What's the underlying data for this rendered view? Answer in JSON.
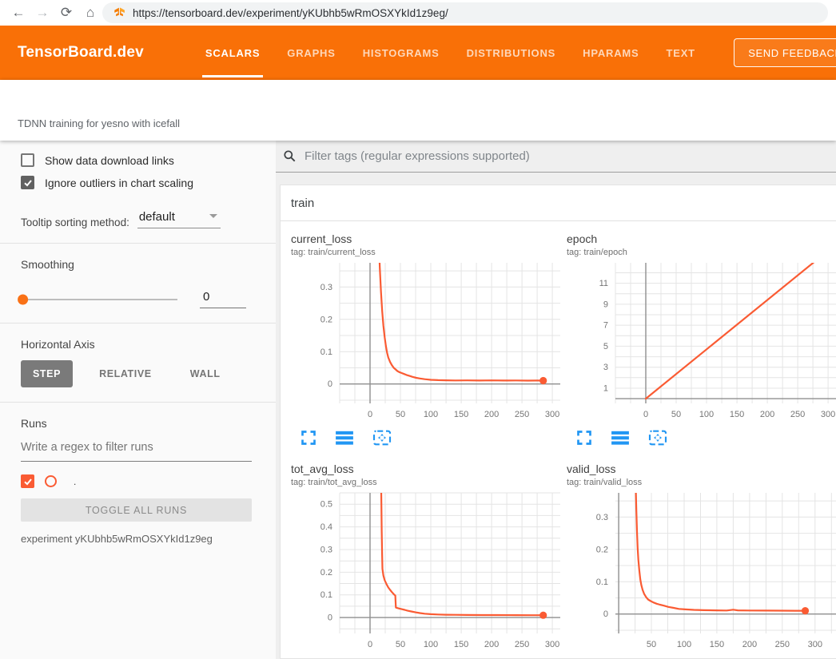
{
  "browser": {
    "url": "https://tensorboard.dev/experiment/yKUbhb5wRmOSXYkId1z9eg/",
    "icons": {
      "back": "←",
      "forward": "→",
      "reload": "⟳",
      "home": "⌂"
    }
  },
  "header": {
    "logo": "TensorBoard.dev",
    "tabs": [
      {
        "label": "SCALARS",
        "active": true
      },
      {
        "label": "GRAPHS",
        "active": false
      },
      {
        "label": "HISTOGRAMS",
        "active": false
      },
      {
        "label": "DISTRIBUTIONS",
        "active": false
      },
      {
        "label": "HPARAMS",
        "active": false
      },
      {
        "label": "TEXT",
        "active": false
      }
    ],
    "feedback_button": "SEND FEEDBACK"
  },
  "experiment_bar": {
    "title": "TDNN training for yesno with icefall"
  },
  "sidebar": {
    "show_download_label": "Show data download links",
    "show_download_checked": false,
    "ignore_outliers_label": "Ignore outliers in chart scaling",
    "ignore_outliers_checked": true,
    "tooltip_sorting_label": "Tooltip sorting method:",
    "tooltip_sorting_value": "default",
    "smoothing_label": "Smoothing",
    "smoothing_value": "0",
    "horizontal_axis_label": "Horizontal Axis",
    "axis_options": [
      {
        "label": "STEP",
        "selected": true
      },
      {
        "label": "RELATIVE",
        "selected": false
      },
      {
        "label": "WALL",
        "selected": false
      }
    ],
    "runs_label": "Runs",
    "runs_filter_placeholder": "Write a regex to filter runs",
    "run_item": {
      "name": ".",
      "checked": true
    },
    "toggle_all_label": "TOGGLE ALL RUNS",
    "experiment_note": "experiment yKUbhb5wRmOSXYkId1z9eg"
  },
  "main": {
    "filter_placeholder": "Filter tags (regular expressions supported)",
    "section_title": "train"
  },
  "colors": {
    "header_orange": "#f97007",
    "run_orange": "#fa5b33",
    "action_icon_blue": "#2196f3",
    "grid_gray": "#e4e4e4",
    "axis_gray": "#8f8f8f"
  },
  "chart_data": [
    {
      "type": "line",
      "title": "current_loss",
      "tag": "tag: train/current_loss",
      "xlim": [
        -50,
        313
      ],
      "ylim": [
        -0.06,
        0.375
      ],
      "x_minor": 25,
      "y_minor": 0.05,
      "x_ticks": [
        0,
        50,
        100,
        150,
        200,
        250,
        300
      ],
      "y_ticks": [
        0,
        0.1,
        0.2,
        0.3
      ],
      "end_marker": true,
      "series": [
        {
          "name": ".",
          "color": "#fa5b33",
          "points": [
            [
              12,
              0.62
            ],
            [
              14,
              0.46
            ],
            [
              16,
              0.36
            ],
            [
              18,
              0.285
            ],
            [
              20,
              0.225
            ],
            [
              22,
              0.18
            ],
            [
              24,
              0.145
            ],
            [
              26,
              0.118
            ],
            [
              28,
              0.097
            ],
            [
              30,
              0.082
            ],
            [
              33,
              0.068
            ],
            [
              36,
              0.058
            ],
            [
              39,
              0.05
            ],
            [
              42,
              0.045
            ],
            [
              45,
              0.04
            ],
            [
              48,
              0.037
            ],
            [
              52,
              0.034
            ],
            [
              56,
              0.031
            ],
            [
              60,
              0.028
            ],
            [
              65,
              0.025
            ],
            [
              70,
              0.022
            ],
            [
              76,
              0.019
            ],
            [
              82,
              0.017
            ],
            [
              90,
              0.015
            ],
            [
              100,
              0.013
            ],
            [
              112,
              0.012
            ],
            [
              125,
              0.0115
            ],
            [
              140,
              0.011
            ],
            [
              160,
              0.0112
            ],
            [
              180,
              0.0108
            ],
            [
              200,
              0.0112
            ],
            [
              220,
              0.0107
            ],
            [
              240,
              0.011
            ],
            [
              260,
              0.0105
            ],
            [
              275,
              0.0106
            ],
            [
              285,
              0.0105
            ]
          ]
        }
      ]
    },
    {
      "type": "line",
      "title": "epoch",
      "tag": "tag: train/epoch",
      "xlim": [
        -50,
        313
      ],
      "ylim": [
        -0.45,
        12.95
      ],
      "x_minor": 25,
      "y_minor": 1,
      "x_ticks": [
        0,
        50,
        100,
        150,
        200,
        250,
        300
      ],
      "y_ticks": [
        1,
        3,
        5,
        7,
        9,
        11
      ],
      "end_marker": false,
      "series": [
        {
          "name": ".",
          "color": "#fa5b33",
          "points": [
            [
              0,
              0
            ],
            [
              285,
              13.4
            ]
          ]
        }
      ]
    },
    {
      "type": "line",
      "title": "tot_avg_loss",
      "tag": "tag: train/tot_avg_loss",
      "xlim": [
        -50,
        313
      ],
      "ylim": [
        -0.07,
        0.55
      ],
      "x_minor": 25,
      "y_minor": 0.05,
      "x_ticks": [
        0,
        50,
        100,
        150,
        200,
        250,
        300
      ],
      "y_ticks": [
        0,
        0.1,
        0.2,
        0.3,
        0.4,
        0.5
      ],
      "end_marker": true,
      "series": [
        {
          "name": ".",
          "color": "#fa5b33",
          "points": [
            [
              18,
              0.64
            ],
            [
              18.6,
              0.5
            ],
            [
              19.2,
              0.38
            ],
            [
              19.8,
              0.28
            ],
            [
              20.4,
              0.215
            ],
            [
              22,
              0.185
            ],
            [
              24,
              0.165
            ],
            [
              27,
              0.148
            ],
            [
              30,
              0.133
            ],
            [
              33,
              0.122
            ],
            [
              36,
              0.112
            ],
            [
              39,
              0.103
            ],
            [
              41.5,
              0.097
            ],
            [
              42.5,
              0.044
            ],
            [
              45,
              0.042
            ],
            [
              48,
              0.04
            ],
            [
              52,
              0.037
            ],
            [
              57,
              0.034
            ],
            [
              62,
              0.03
            ],
            [
              68,
              0.027
            ],
            [
              75,
              0.023
            ],
            [
              82,
              0.02
            ],
            [
              90,
              0.017
            ],
            [
              100,
              0.015
            ],
            [
              112,
              0.0135
            ],
            [
              125,
              0.0125
            ],
            [
              140,
              0.012
            ],
            [
              160,
              0.0115
            ],
            [
              185,
              0.011
            ],
            [
              210,
              0.011
            ],
            [
              240,
              0.0105
            ],
            [
              265,
              0.0103
            ],
            [
              285,
              0.0102
            ]
          ]
        }
      ]
    },
    {
      "type": "line",
      "title": "valid_loss",
      "tag": "tag: train/valid_loss",
      "xlim": [
        -5,
        332
      ],
      "ylim": [
        -0.06,
        0.375
      ],
      "x_minor": 25,
      "y_minor": 0.05,
      "x_ticks": [
        50,
        100,
        150,
        200,
        250,
        300
      ],
      "y_ticks": [
        0,
        0.1,
        0.2,
        0.3
      ],
      "end_marker": true,
      "series": [
        {
          "name": ".",
          "color": "#fa5b33",
          "points": [
            [
              24,
              0.62
            ],
            [
              25,
              0.5
            ],
            [
              26,
              0.4
            ],
            [
              27,
              0.32
            ],
            [
              28,
              0.255
            ],
            [
              29,
              0.205
            ],
            [
              30,
              0.168
            ],
            [
              31.5,
              0.135
            ],
            [
              33,
              0.108
            ],
            [
              34.5,
              0.09
            ],
            [
              36.5,
              0.075
            ],
            [
              39,
              0.062
            ],
            [
              42,
              0.052
            ],
            [
              45,
              0.045
            ],
            [
              49,
              0.04
            ],
            [
              53,
              0.036
            ],
            [
              58,
              0.032
            ],
            [
              63,
              0.029
            ],
            [
              69,
              0.026
            ],
            [
              76,
              0.022
            ],
            [
              84,
              0.019
            ],
            [
              92,
              0.016
            ],
            [
              102,
              0.0145
            ],
            [
              115,
              0.013
            ],
            [
              130,
              0.012
            ],
            [
              148,
              0.0115
            ],
            [
              165,
              0.011
            ],
            [
              175,
              0.0135
            ],
            [
              182,
              0.0115
            ],
            [
              200,
              0.011
            ],
            [
              225,
              0.0108
            ],
            [
              250,
              0.0105
            ],
            [
              270,
              0.0103
            ],
            [
              285,
              0.0102
            ]
          ]
        }
      ]
    }
  ]
}
